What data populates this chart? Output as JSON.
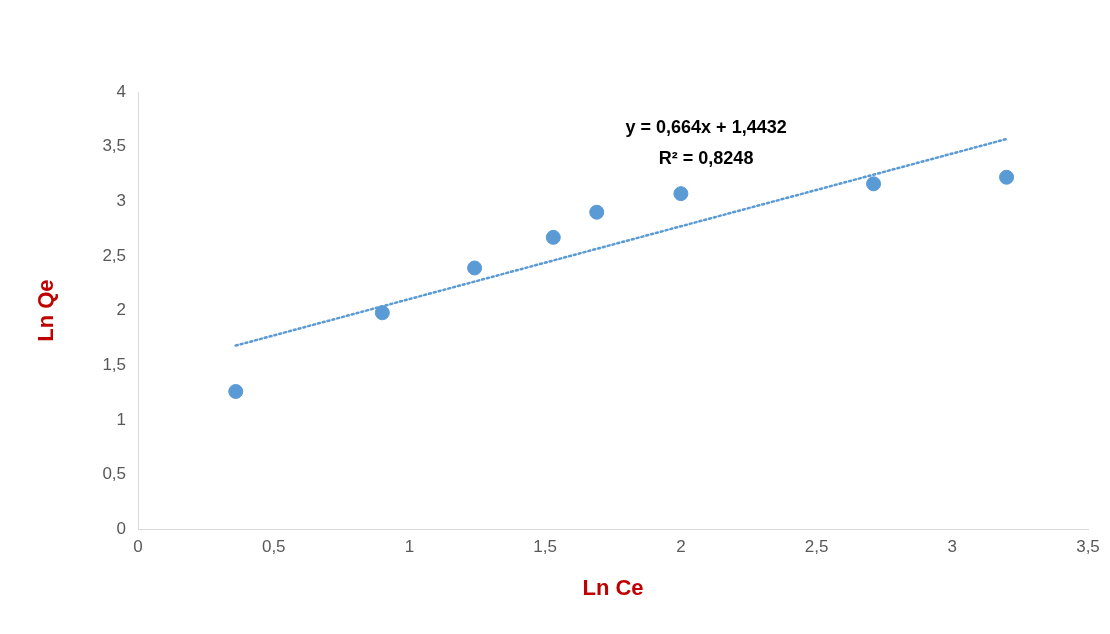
{
  "chart_data": {
    "type": "scatter",
    "xlabel": "Ln Ce",
    "ylabel": "Ln Qe",
    "annotations": [
      "y = 0,664x + 1,4432",
      "R² = 0,8248"
    ],
    "xlim": [
      0,
      3.5
    ],
    "xticks": [
      0,
      {
        "value": 0.5,
        "label": "0,5"
      },
      1,
      {
        "value": 1.5,
        "label": "1,5"
      },
      2,
      {
        "value": 2.5,
        "label": "2,5"
      },
      3,
      {
        "value": 3.5,
        "label": "3,5"
      }
    ],
    "ylim": [
      0,
      4
    ],
    "yticks": [
      0,
      {
        "value": 0.5,
        "label": "0,5"
      },
      1,
      {
        "value": 1.5,
        "label": "1,5"
      },
      2,
      {
        "value": 2.5,
        "label": "2,5"
      },
      3,
      {
        "value": 3.5,
        "label": "3,5"
      },
      4
    ],
    "grid": false,
    "legend": false,
    "marker": "circle",
    "series": [
      {
        "type": "scatter",
        "color": "#5b9bd5",
        "x": [
          0.36,
          0.9,
          1.24,
          1.53,
          1.69,
          2.0,
          2.71,
          3.2
        ],
        "values": [
          1.26,
          1.98,
          2.39,
          2.67,
          2.9,
          3.07,
          3.16,
          3.22
        ]
      },
      {
        "type": "line",
        "color": "#5b9bd5",
        "line_style": "dotted",
        "marker": "none",
        "x": [
          0.36,
          3.2
        ],
        "values": [
          1.68,
          3.57
        ]
      }
    ]
  }
}
